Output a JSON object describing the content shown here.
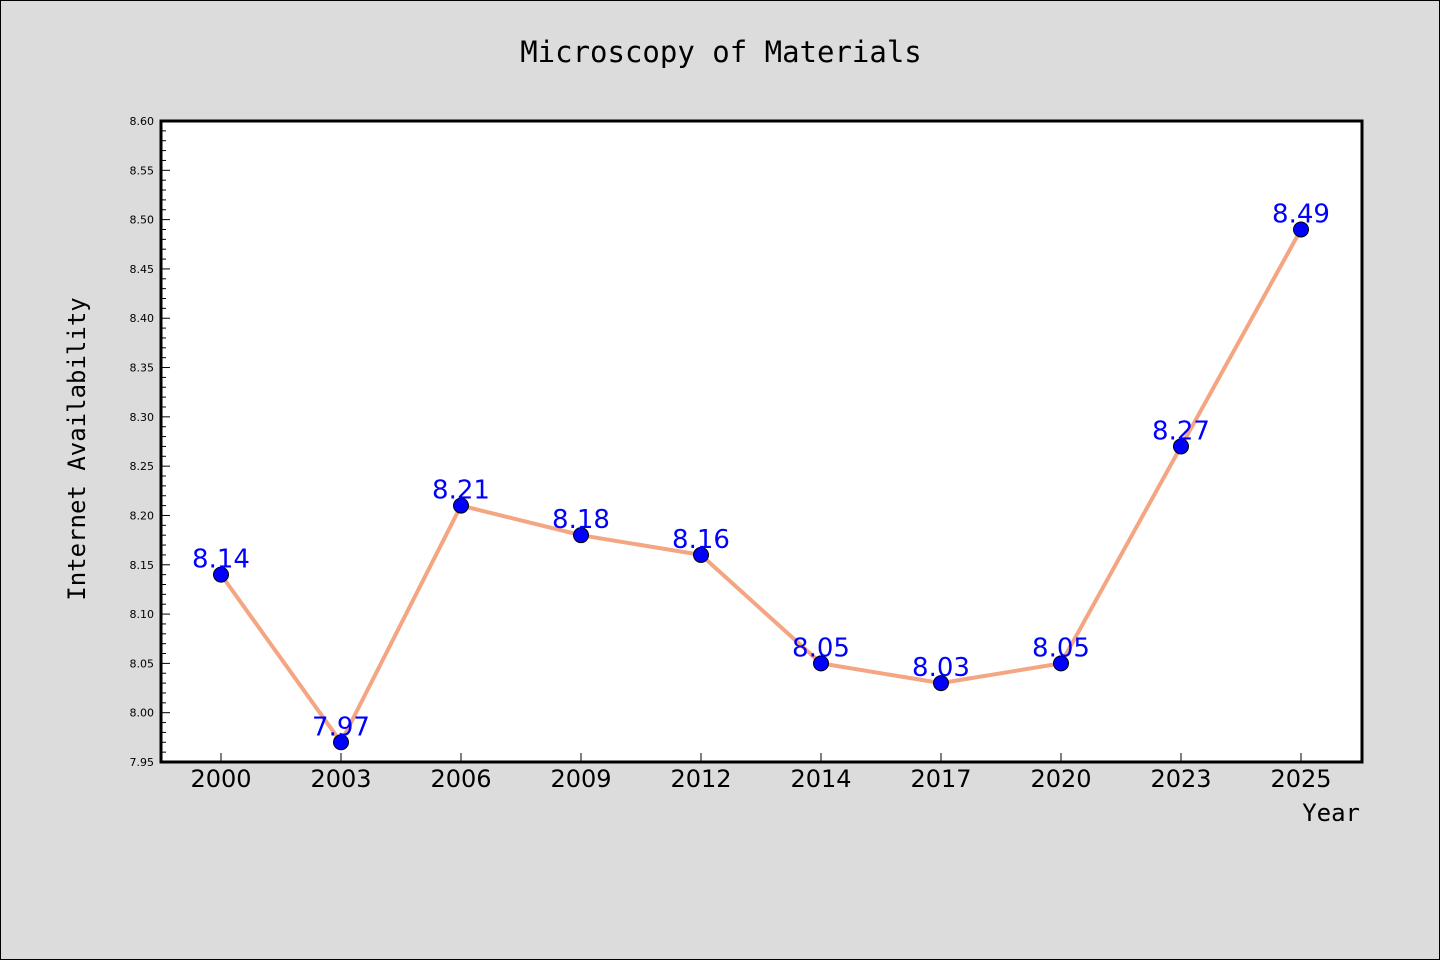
{
  "chart_data": {
    "type": "line",
    "title": "Microscopy of Materials",
    "xlabel": "Year",
    "ylabel": "Internet Availability",
    "categories": [
      "2000",
      "2003",
      "2006",
      "2009",
      "2012",
      "2014",
      "2017",
      "2020",
      "2023",
      "2025"
    ],
    "series": [
      {
        "values": [
          8.14,
          7.97,
          8.21,
          8.18,
          8.16,
          8.05,
          8.03,
          8.05,
          8.27,
          8.49
        ],
        "line_color": "#f4a582",
        "marker_color": "#0000ff"
      }
    ],
    "data_labels": [
      "8.14",
      "7.97",
      "8.21",
      "8.18",
      "8.16",
      "8.05",
      "8.03",
      "8.05",
      "8.27",
      "8.49"
    ],
    "ylim": [
      7.95,
      8.6
    ],
    "yticks": [
      "7.95",
      "8.00",
      "8.05",
      "8.10",
      "8.15",
      "8.20",
      "8.25",
      "8.30",
      "8.35",
      "8.40",
      "8.45",
      "8.50",
      "8.55",
      "8.60"
    ],
    "grid": false,
    "legend": "none"
  }
}
